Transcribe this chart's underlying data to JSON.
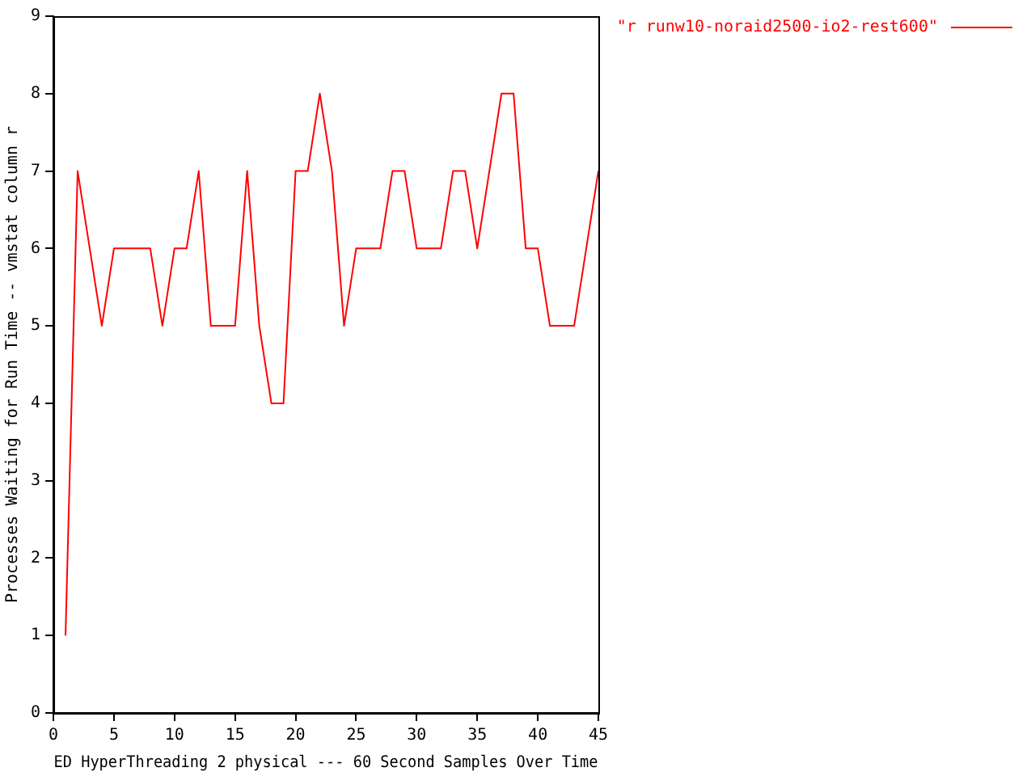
{
  "chart_data": {
    "type": "line",
    "xlabel": "ED HyperThreading 2 physical --- 60 Second Samples Over Time",
    "ylabel": "Processes Waiting for Run Time -- vmstat column r",
    "x": [
      1,
      2,
      3,
      4,
      5,
      6,
      7,
      8,
      9,
      10,
      11,
      12,
      13,
      14,
      15,
      16,
      17,
      18,
      19,
      20,
      21,
      22,
      23,
      24,
      25,
      26,
      27,
      28,
      29,
      30,
      31,
      32,
      33,
      34,
      35,
      36,
      37,
      38,
      39,
      40,
      41,
      42,
      43,
      44,
      45
    ],
    "series": [
      {
        "name": "\"r runw10-noraid2500-io2-rest600\"",
        "color": "#ff0000",
        "values": [
          1,
          7,
          6,
          5,
          6,
          6,
          6,
          6,
          5,
          6,
          6,
          7,
          5,
          5,
          5,
          7,
          5,
          4,
          4,
          7,
          7,
          8,
          7,
          5,
          6,
          6,
          6,
          7,
          7,
          6,
          6,
          6,
          7,
          7,
          6,
          7,
          8,
          8,
          6,
          6,
          5,
          5,
          5,
          6,
          7
        ]
      }
    ],
    "xlim": [
      0,
      45
    ],
    "xticks": [
      0,
      5,
      10,
      15,
      20,
      25,
      30,
      35,
      40,
      45
    ],
    "ylim": [
      0,
      9
    ],
    "yticks": [
      0,
      1,
      2,
      3,
      4,
      5,
      6,
      7,
      8,
      9
    ],
    "grid": false,
    "legend": "top right",
    "marker": "none",
    "line_style": "solid"
  }
}
